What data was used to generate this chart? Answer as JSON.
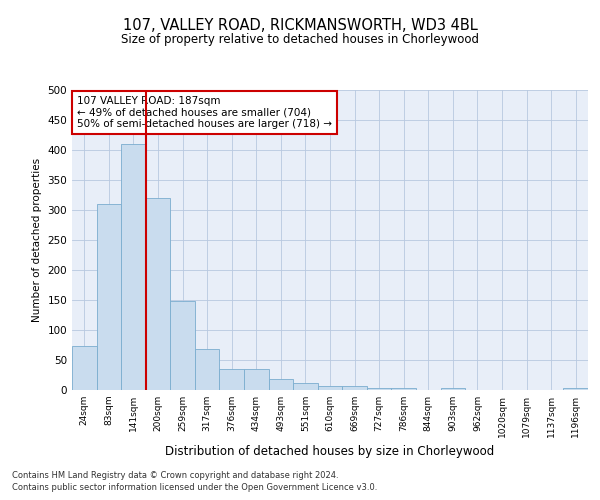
{
  "title1": "107, VALLEY ROAD, RICKMANSWORTH, WD3 4BL",
  "title2": "Size of property relative to detached houses in Chorleywood",
  "xlabel": "Distribution of detached houses by size in Chorleywood",
  "ylabel": "Number of detached properties",
  "bin_labels": [
    "24sqm",
    "83sqm",
    "141sqm",
    "200sqm",
    "259sqm",
    "317sqm",
    "376sqm",
    "434sqm",
    "493sqm",
    "551sqm",
    "610sqm",
    "669sqm",
    "727sqm",
    "786sqm",
    "844sqm",
    "903sqm",
    "962sqm",
    "1020sqm",
    "1079sqm",
    "1137sqm",
    "1196sqm"
  ],
  "bar_heights": [
    73,
    310,
    410,
    320,
    148,
    68,
    35,
    35,
    18,
    11,
    6,
    6,
    3,
    3,
    0,
    3,
    0,
    0,
    0,
    0,
    3
  ],
  "bar_color": "#c9dcee",
  "bar_edgecolor": "#7aadcf",
  "background_color": "#ffffff",
  "plot_bg_color": "#e8eef8",
  "grid_color": "#b8c8e0",
  "vline_color": "#cc0000",
  "annotation_text": "107 VALLEY ROAD: 187sqm\n← 49% of detached houses are smaller (704)\n50% of semi-detached houses are larger (718) →",
  "annotation_box_color": "#ffffff",
  "annotation_box_edgecolor": "#cc0000",
  "ylim": [
    0,
    500
  ],
  "yticks": [
    0,
    50,
    100,
    150,
    200,
    250,
    300,
    350,
    400,
    450,
    500
  ],
  "footnote1": "Contains HM Land Registry data © Crown copyright and database right 2024.",
  "footnote2": "Contains public sector information licensed under the Open Government Licence v3.0."
}
